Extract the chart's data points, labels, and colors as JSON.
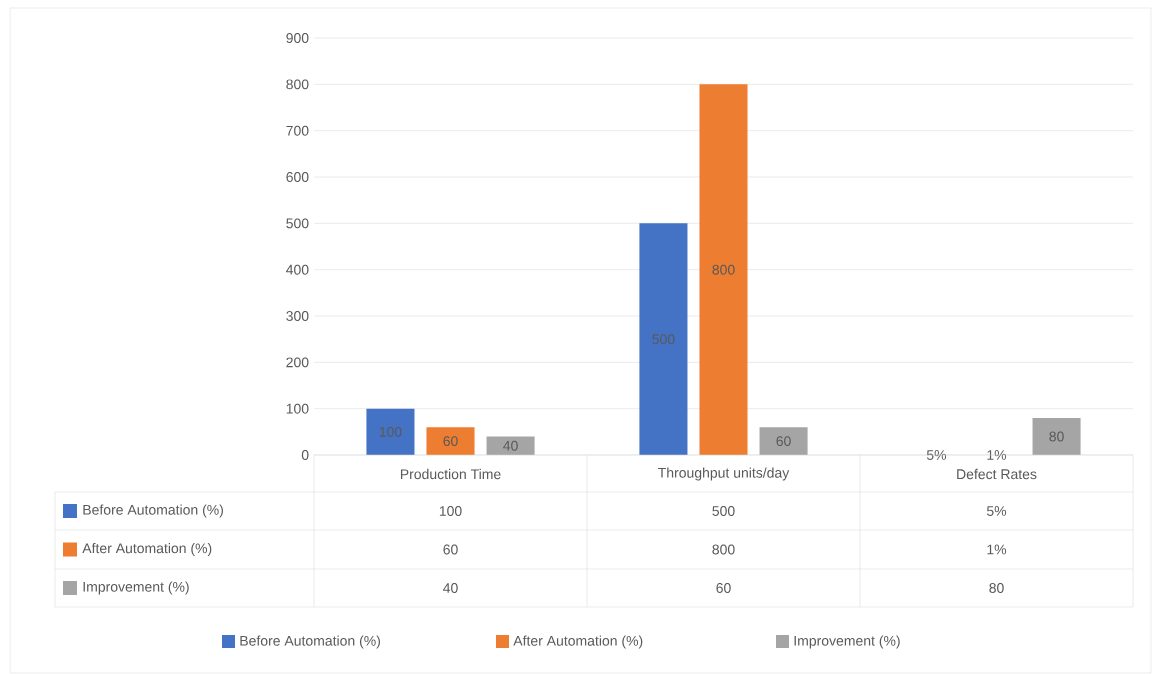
{
  "chart_data": {
    "type": "bar",
    "categories": [
      "Production Time",
      "Throughput units/day",
      "Defect Rates"
    ],
    "series": [
      {
        "name": "Before Automation (%)",
        "color": "#4472c4",
        "values": [
          100,
          500,
          0.05
        ],
        "value_labels": [
          "100",
          "500",
          "5%"
        ]
      },
      {
        "name": "After Automation (%)",
        "color": "#ed7d31",
        "values": [
          60,
          800,
          0.01
        ],
        "value_labels": [
          "60",
          "800",
          "1%"
        ]
      },
      {
        "name": "Improvement (%)",
        "color": "#a5a5a5",
        "values": [
          40,
          60,
          80
        ],
        "value_labels": [
          "40",
          "60",
          "80"
        ]
      }
    ],
    "ylim": [
      0,
      900
    ],
    "yticks": [
      0,
      100,
      200,
      300,
      400,
      500,
      600,
      700,
      800,
      900
    ],
    "grid": "y",
    "legend": "bottom"
  }
}
